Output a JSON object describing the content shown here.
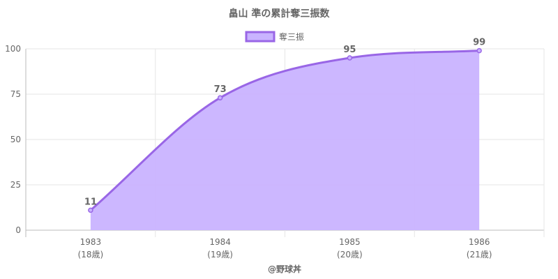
{
  "chart_data": {
    "type": "area",
    "title": "畠山 準の累計奪三振数",
    "categories": [
      "1983",
      "1984",
      "1985",
      "1986"
    ],
    "category_sublabels": [
      "(18歳)",
      "(19歳)",
      "(20歳)",
      "(21歳)"
    ],
    "series": [
      {
        "name": "奪三振",
        "values": [
          11,
          73,
          95,
          99
        ]
      }
    ],
    "ylim": [
      0,
      100
    ],
    "yticks": [
      0,
      25,
      50,
      75,
      100
    ],
    "grid": true,
    "legend_position": "top",
    "colors": {
      "line": "#9966e6",
      "fill": "#c9b3ff",
      "grid": "#e6e6e6",
      "axis": "#bbbbbb"
    }
  },
  "footer": "@野球丼"
}
